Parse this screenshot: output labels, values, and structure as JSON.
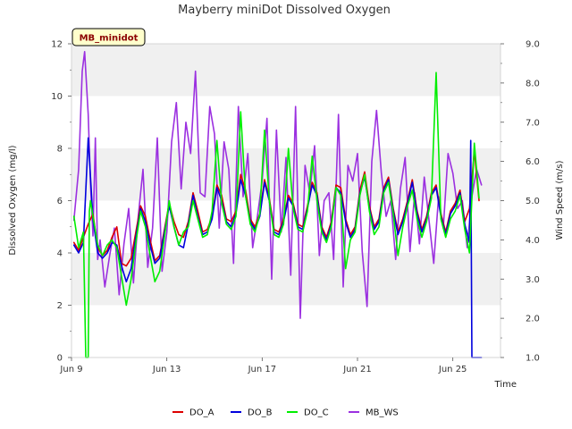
{
  "chart_data": {
    "type": "line",
    "title": "Mayberry miniDot Dissolved Oxygen",
    "badge": "MB_minidot",
    "xlabel": "Time",
    "ylabel": "Dissolved Oxygen (mg/l)",
    "ylabel_right": "Wind Speed (m/s)",
    "x_unit": "day of June",
    "xlim": [
      9,
      27
    ],
    "ylim": [
      0,
      12
    ],
    "ylim_right": [
      1.0,
      9.0
    ],
    "x_ticks": [
      9,
      13,
      17,
      21,
      25
    ],
    "x_tick_labels": [
      "Jun 9",
      "Jun 13",
      "Jun 17",
      "Jun 21",
      "Jun 25"
    ],
    "y_ticks": [
      0,
      2,
      4,
      6,
      8,
      10,
      12
    ],
    "y_tick_labels": [
      "0",
      "2",
      "4",
      "6",
      "8",
      "10",
      "12"
    ],
    "y_right_ticks": [
      1.0,
      2.0,
      3.0,
      4.0,
      5.0,
      6.0,
      7.0,
      8.0,
      9.0
    ],
    "y_right_tick_labels": [
      "1.0",
      "2.0",
      "3.0",
      "4.0",
      "5.0",
      "6.0",
      "7.0",
      "8.0",
      "9.0"
    ],
    "background_bands": [
      [
        2,
        4
      ],
      [
        6,
        8
      ],
      [
        10,
        12
      ]
    ],
    "grid": false,
    "legend_position": "bottom-center",
    "series": [
      {
        "name": "DO_A",
        "color": "#dd0000",
        "axis": "left",
        "x": [
          9.1,
          9.3,
          9.5,
          9.7,
          9.9,
          10.1,
          10.3,
          10.5,
          10.7,
          10.9,
          11.1,
          11.3,
          11.5,
          11.7,
          11.9,
          12.1,
          12.3,
          12.5,
          12.7,
          12.9,
          13.1,
          13.3,
          13.5,
          13.7,
          13.9,
          14.1,
          14.3,
          14.5,
          14.7,
          14.9,
          15.1,
          15.3,
          15.5,
          15.7,
          15.9,
          16.1,
          16.3,
          16.5,
          16.7,
          16.9,
          17.1,
          17.3,
          17.5,
          17.7,
          17.9,
          18.1,
          18.3,
          18.5,
          18.7,
          18.9,
          19.1,
          19.3,
          19.5,
          19.7,
          19.9,
          20.1,
          20.3,
          20.5,
          20.7,
          20.9,
          21.1,
          21.3,
          21.5,
          21.7,
          21.9,
          22.1,
          22.3,
          22.5,
          22.7,
          22.9,
          23.1,
          23.3,
          23.5,
          23.7,
          23.9,
          24.1,
          24.3,
          24.5,
          24.7,
          24.9,
          25.1,
          25.3,
          25.5,
          25.7,
          25.9,
          26.1
        ],
        "y": [
          4.4,
          4.1,
          4.6,
          5.1,
          5.5,
          4.2,
          3.9,
          4.1,
          4.6,
          5.0,
          3.6,
          3.5,
          3.8,
          4.8,
          5.8,
          5.4,
          4.5,
          3.7,
          3.9,
          4.9,
          5.9,
          5.2,
          4.7,
          4.6,
          5.2,
          6.3,
          5.6,
          4.8,
          4.9,
          5.4,
          6.6,
          6.2,
          5.3,
          5.2,
          5.6,
          7.0,
          6.4,
          5.3,
          5.0,
          5.5,
          6.8,
          6.1,
          4.9,
          4.8,
          5.3,
          6.2,
          5.9,
          5.1,
          5.0,
          5.8,
          6.7,
          6.3,
          5.0,
          4.6,
          5.2,
          6.6,
          6.5,
          5.3,
          4.7,
          5.0,
          6.4,
          7.1,
          5.8,
          5.0,
          5.3,
          6.5,
          6.9,
          5.7,
          4.8,
          5.3,
          6.0,
          6.8,
          5.6,
          4.9,
          5.4,
          6.3,
          6.6,
          5.5,
          4.8,
          5.6,
          5.9,
          6.4,
          5.2,
          5.7,
          7.9,
          6.0
        ]
      },
      {
        "name": "DO_B",
        "color": "#0000dd",
        "axis": "left",
        "x": [
          9.1,
          9.3,
          9.5,
          9.7,
          9.9,
          10.1,
          10.3,
          10.5,
          10.7,
          10.9,
          11.1,
          11.3,
          11.5,
          11.7,
          11.9,
          12.1,
          12.3,
          12.5,
          12.7,
          12.9,
          13.1,
          13.3,
          13.5,
          13.7,
          13.9,
          14.1,
          14.3,
          14.5,
          14.7,
          14.9,
          15.1,
          15.3,
          15.5,
          15.7,
          15.9,
          16.1,
          16.3,
          16.5,
          16.7,
          16.9,
          17.1,
          17.3,
          17.5,
          17.7,
          17.9,
          18.1,
          18.3,
          18.5,
          18.7,
          18.9,
          19.1,
          19.3,
          19.5,
          19.7,
          19.9,
          20.1,
          20.3,
          20.5,
          20.7,
          20.9,
          21.1,
          21.3,
          21.5,
          21.7,
          21.9,
          22.1,
          22.3,
          22.5,
          22.7,
          22.9,
          23.1,
          23.3,
          23.5,
          23.7,
          23.9,
          24.1,
          24.3,
          24.5,
          24.7,
          24.9,
          25.1,
          25.3,
          25.5,
          25.7,
          25.75,
          25.8,
          26.0,
          26.2
        ],
        "y": [
          4.3,
          4.0,
          4.4,
          8.4,
          5.3,
          4.0,
          3.8,
          4.0,
          4.4,
          4.3,
          3.5,
          2.9,
          3.4,
          4.6,
          5.7,
          5.2,
          4.3,
          3.6,
          3.8,
          4.8,
          5.8,
          5.0,
          4.3,
          4.2,
          5.1,
          6.2,
          5.4,
          4.7,
          4.8,
          5.3,
          6.5,
          6.0,
          5.2,
          5.0,
          5.5,
          6.8,
          6.2,
          5.2,
          4.9,
          5.4,
          6.7,
          6.0,
          4.8,
          4.7,
          5.2,
          6.1,
          5.8,
          5.0,
          4.9,
          5.7,
          6.6,
          6.2,
          4.9,
          4.5,
          5.1,
          6.5,
          6.3,
          5.2,
          4.6,
          4.9,
          6.3,
          6.9,
          5.7,
          4.9,
          5.2,
          6.4,
          6.8,
          5.6,
          4.7,
          5.2,
          5.9,
          6.7,
          5.5,
          4.8,
          5.3,
          6.2,
          6.5,
          5.4,
          4.7,
          5.5,
          5.8,
          6.3,
          5.1,
          4.4,
          8.3,
          0.0,
          0.0,
          0.0
        ]
      },
      {
        "name": "DO_C",
        "color": "#00ee00",
        "axis": "left",
        "x": [
          9.1,
          9.3,
          9.5,
          9.6,
          9.65,
          9.7,
          9.75,
          9.8,
          9.9,
          10.1,
          10.3,
          10.5,
          10.7,
          10.9,
          11.1,
          11.3,
          11.5,
          11.7,
          11.9,
          12.1,
          12.3,
          12.5,
          12.7,
          12.9,
          13.1,
          13.3,
          13.5,
          13.7,
          13.9,
          14.1,
          14.3,
          14.5,
          14.7,
          14.9,
          15.1,
          15.3,
          15.5,
          15.7,
          15.9,
          16.1,
          16.3,
          16.5,
          16.7,
          16.9,
          17.1,
          17.3,
          17.5,
          17.7,
          17.9,
          18.1,
          18.3,
          18.5,
          18.7,
          18.9,
          19.1,
          19.3,
          19.5,
          19.7,
          19.9,
          20.1,
          20.3,
          20.5,
          20.7,
          20.9,
          21.1,
          21.3,
          21.5,
          21.7,
          21.9,
          22.1,
          22.3,
          22.5,
          22.7,
          22.9,
          23.1,
          23.3,
          23.5,
          23.7,
          23.9,
          24.1,
          24.3,
          24.5,
          24.7,
          24.9,
          25.1,
          25.3,
          25.5,
          25.7,
          25.9,
          26.1
        ],
        "y": [
          5.4,
          4.2,
          4.8,
          0.0,
          0.0,
          0.0,
          5.6,
          6.0,
          5.4,
          4.3,
          3.9,
          4.3,
          4.5,
          4.2,
          3.1,
          2.0,
          3.0,
          4.4,
          5.6,
          5.0,
          3.9,
          2.9,
          3.3,
          4.6,
          6.0,
          5.0,
          4.3,
          4.8,
          5.0,
          6.0,
          5.3,
          4.6,
          4.7,
          5.6,
          8.3,
          5.9,
          5.1,
          4.9,
          5.4,
          9.4,
          6.2,
          5.1,
          4.8,
          5.5,
          8.7,
          6.0,
          4.7,
          4.6,
          5.1,
          8.0,
          5.7,
          4.9,
          4.8,
          5.6,
          7.7,
          6.0,
          4.8,
          4.4,
          5.0,
          6.5,
          6.2,
          3.4,
          4.5,
          4.8,
          6.2,
          7.0,
          5.6,
          4.7,
          5.0,
          6.3,
          6.7,
          5.5,
          3.9,
          5.0,
          5.8,
          6.4,
          5.3,
          4.6,
          5.2,
          6.1,
          10.9,
          5.3,
          4.6,
          5.3,
          5.6,
          6.2,
          4.9,
          4.0,
          8.2,
          6.1
        ]
      },
      {
        "name": "MB_WS",
        "color": "#9b30e0",
        "axis": "right",
        "x": [
          9.1,
          9.3,
          9.45,
          9.55,
          9.7,
          9.8,
          9.9,
          10.0,
          10.1,
          10.2,
          10.4,
          10.6,
          10.8,
          11.0,
          11.2,
          11.4,
          11.6,
          11.8,
          12.0,
          12.2,
          12.4,
          12.6,
          12.8,
          13.0,
          13.2,
          13.4,
          13.6,
          13.8,
          14.0,
          14.2,
          14.4,
          14.6,
          14.8,
          15.0,
          15.2,
          15.4,
          15.6,
          15.8,
          16.0,
          16.2,
          16.4,
          16.6,
          16.8,
          17.0,
          17.2,
          17.4,
          17.6,
          17.8,
          18.0,
          18.2,
          18.4,
          18.6,
          18.8,
          19.0,
          19.2,
          19.4,
          19.6,
          19.8,
          20.0,
          20.2,
          20.4,
          20.6,
          20.8,
          21.0,
          21.2,
          21.4,
          21.6,
          21.8,
          22.0,
          22.2,
          22.4,
          22.6,
          22.8,
          23.0,
          23.2,
          23.4,
          23.6,
          23.8,
          24.0,
          24.2,
          24.4,
          24.6,
          24.8,
          25.0,
          25.2,
          25.4,
          25.6,
          25.8,
          26.0,
          26.2
        ],
        "y": [
          4.5,
          5.8,
          8.3,
          8.8,
          7.2,
          5.4,
          4.1,
          6.6,
          3.5,
          4.0,
          2.8,
          3.6,
          4.3,
          2.6,
          3.9,
          4.8,
          2.9,
          4.6,
          5.8,
          3.3,
          4.3,
          6.6,
          3.2,
          4.2,
          6.5,
          7.5,
          5.3,
          7.0,
          6.2,
          8.3,
          5.2,
          5.1,
          7.4,
          6.7,
          4.3,
          6.5,
          5.8,
          3.4,
          7.4,
          5.1,
          6.2,
          3.8,
          4.6,
          5.5,
          7.1,
          3.0,
          6.8,
          4.2,
          6.1,
          3.1,
          7.4,
          2.0,
          5.9,
          5.2,
          6.4,
          3.6,
          5.0,
          5.2,
          3.5,
          7.2,
          2.8,
          5.9,
          5.5,
          6.2,
          3.7,
          2.3,
          6.0,
          7.3,
          5.7,
          4.6,
          5.0,
          3.5,
          5.3,
          6.1,
          3.7,
          5.2,
          3.9,
          5.6,
          4.5,
          3.4,
          5.1,
          4.3,
          6.2,
          5.7,
          4.8,
          5.0,
          3.8,
          5.1,
          5.8,
          5.4
        ]
      }
    ]
  }
}
